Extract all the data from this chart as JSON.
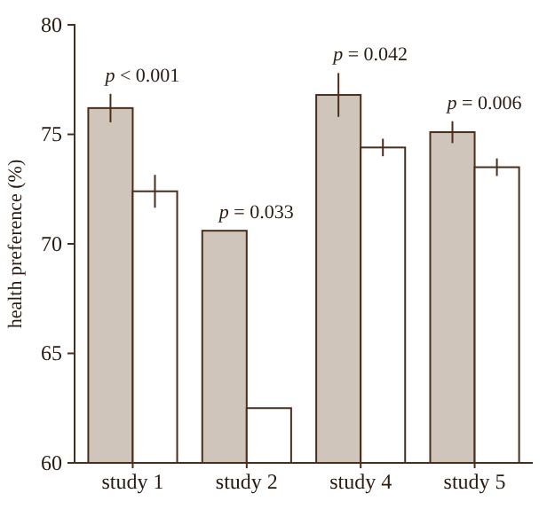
{
  "chart_data": {
    "type": "bar",
    "ylabel": "health preference (%)",
    "categories": [
      "study 1",
      "study 2",
      "study 4",
      "study 5"
    ],
    "series": [
      {
        "color": "#cfc5bb",
        "values": [
          76.2,
          70.6,
          76.8,
          75.1
        ],
        "errors": [
          0.65,
          null,
          1.0,
          0.5
        ]
      },
      {
        "color": "#ffffff",
        "values": [
          72.4,
          62.5,
          74.4,
          73.5
        ],
        "errors": [
          0.75,
          null,
          0.4,
          0.4
        ]
      }
    ],
    "ylim": [
      60,
      80
    ],
    "yticks": [
      60,
      65,
      70,
      75,
      80
    ],
    "grid": false,
    "annotations": [
      "p < 0.001",
      "p = 0.033",
      "p = 0.042",
      "p = 0.006"
    ]
  }
}
